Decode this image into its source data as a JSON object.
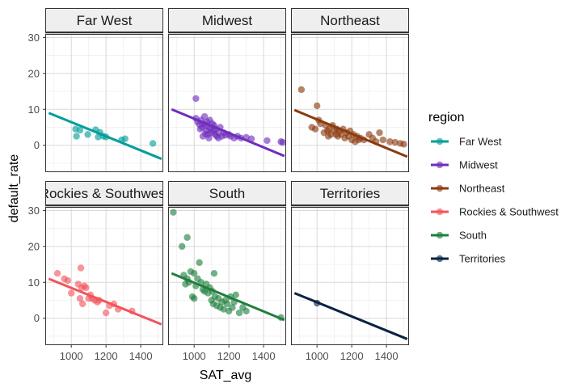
{
  "chart_data": {
    "type": "scatter",
    "facet_by": "region",
    "xlabel": "SAT_avg",
    "ylabel": "default_rate",
    "xlim": [
      850,
      1530
    ],
    "ylim": [
      -7.5,
      31
    ],
    "x_ticks": [
      1000,
      1200,
      1400
    ],
    "x_tick_labels": [
      "1000",
      "1200",
      "1400"
    ],
    "y_ticks": [
      0,
      10,
      20,
      30
    ],
    "y_tick_labels": [
      "0",
      "10",
      "20",
      "30"
    ],
    "grid": true,
    "legend": {
      "title": "region",
      "placement": "right"
    },
    "fit_line": {
      "x_start": 870,
      "x_end": 1520
    },
    "facets": [
      {
        "name": "Far West",
        "color": "#009E9A",
        "fit": {
          "y_start": 9.0,
          "y_end": -3.8
        },
        "points": [
          [
            1025,
            4.5
          ],
          [
            1030,
            2.5
          ],
          [
            1050,
            4.2
          ],
          [
            1095,
            3.0
          ],
          [
            1140,
            4.3
          ],
          [
            1155,
            2.3
          ],
          [
            1165,
            3.6
          ],
          [
            1185,
            2.5
          ],
          [
            1200,
            2.3
          ],
          [
            1290,
            1.5
          ],
          [
            1310,
            1.8
          ],
          [
            1470,
            0.5
          ]
        ]
      },
      {
        "name": "Midwest",
        "color": "#6F2DBD",
        "fit": {
          "y_start": 10.0,
          "y_end": -3.0
        },
        "points": [
          [
            1010,
            13.0
          ],
          [
            1010,
            7.5
          ],
          [
            1020,
            6.5
          ],
          [
            1030,
            5.8
          ],
          [
            1035,
            4.5
          ],
          [
            1040,
            7.0
          ],
          [
            1045,
            5.0
          ],
          [
            1050,
            2.5
          ],
          [
            1055,
            6.0
          ],
          [
            1060,
            8.0
          ],
          [
            1065,
            5.5
          ],
          [
            1070,
            4.0
          ],
          [
            1075,
            6.5
          ],
          [
            1080,
            3.0
          ],
          [
            1085,
            5.0
          ],
          [
            1090,
            7.0
          ],
          [
            1095,
            4.5
          ],
          [
            1100,
            3.5
          ],
          [
            1105,
            6.0
          ],
          [
            1110,
            4.0
          ],
          [
            1115,
            5.5
          ],
          [
            1120,
            3.0
          ],
          [
            1125,
            4.5
          ],
          [
            1130,
            2.5
          ],
          [
            1140,
            3.5
          ],
          [
            1150,
            5.0
          ],
          [
            1160,
            2.5
          ],
          [
            1170,
            3.5
          ],
          [
            1180,
            2.8
          ],
          [
            1200,
            3.0
          ],
          [
            1210,
            2.5
          ],
          [
            1230,
            2.0
          ],
          [
            1250,
            2.5
          ],
          [
            1270,
            2.0
          ],
          [
            1300,
            2.2
          ],
          [
            1330,
            1.8
          ],
          [
            1420,
            1.3
          ],
          [
            1500,
            1.0
          ],
          [
            1510,
            0.8
          ],
          [
            1085,
            2.0
          ],
          [
            1065,
            3.2
          ],
          [
            1140,
            2.0
          ]
        ]
      },
      {
        "name": "Northeast",
        "color": "#8B3A0E",
        "fit": {
          "y_start": 9.8,
          "y_end": -3.2
        },
        "points": [
          [
            910,
            15.5
          ],
          [
            970,
            5.0
          ],
          [
            990,
            4.5
          ],
          [
            1000,
            11.0
          ],
          [
            1010,
            7.0
          ],
          [
            1020,
            6.0
          ],
          [
            1040,
            3.5
          ],
          [
            1050,
            5.5
          ],
          [
            1060,
            4.0
          ],
          [
            1065,
            2.5
          ],
          [
            1070,
            4.5
          ],
          [
            1080,
            3.0
          ],
          [
            1090,
            5.5
          ],
          [
            1100,
            4.0
          ],
          [
            1110,
            3.0
          ],
          [
            1115,
            4.5
          ],
          [
            1120,
            2.5
          ],
          [
            1130,
            4.0
          ],
          [
            1140,
            3.0
          ],
          [
            1150,
            4.5
          ],
          [
            1160,
            2.0
          ],
          [
            1170,
            3.5
          ],
          [
            1180,
            2.5
          ],
          [
            1190,
            4.0
          ],
          [
            1200,
            1.5
          ],
          [
            1210,
            3.0
          ],
          [
            1220,
            1.0
          ],
          [
            1230,
            2.5
          ],
          [
            1240,
            1.5
          ],
          [
            1250,
            2.0
          ],
          [
            1270,
            1.5
          ],
          [
            1300,
            3.0
          ],
          [
            1320,
            2.0
          ],
          [
            1340,
            1.0
          ],
          [
            1360,
            3.5
          ],
          [
            1380,
            1.5
          ],
          [
            1420,
            1.0
          ],
          [
            1450,
            0.8
          ],
          [
            1480,
            0.5
          ],
          [
            1500,
            0.3
          ]
        ]
      },
      {
        "name": "Rockies & Southwest",
        "color": "#F2545B",
        "fit": {
          "y_start": 11.0,
          "y_end": -1.7
        },
        "points": [
          [
            920,
            12.5
          ],
          [
            960,
            11.0
          ],
          [
            980,
            10.5
          ],
          [
            1000,
            7.0
          ],
          [
            1040,
            9.5
          ],
          [
            1050,
            5.5
          ],
          [
            1055,
            14.0
          ],
          [
            1060,
            8.5
          ],
          [
            1065,
            4.0
          ],
          [
            1075,
            9.0
          ],
          [
            1085,
            8.5
          ],
          [
            1100,
            5.5
          ],
          [
            1110,
            6.5
          ],
          [
            1120,
            5.5
          ],
          [
            1135,
            5.0
          ],
          [
            1150,
            4.5
          ],
          [
            1160,
            5.0
          ],
          [
            1200,
            1.5
          ],
          [
            1220,
            3.5
          ],
          [
            1245,
            4.0
          ],
          [
            1270,
            2.5
          ],
          [
            1350,
            2.0
          ]
        ]
      },
      {
        "name": "South",
        "color": "#1E7F3E",
        "fit": {
          "y_start": 12.5,
          "y_end": -0.5
        },
        "points": [
          [
            880,
            29.5
          ],
          [
            930,
            20.0
          ],
          [
            960,
            22.5
          ],
          [
            940,
            12.0
          ],
          [
            950,
            9.5
          ],
          [
            960,
            11.0
          ],
          [
            970,
            10.0
          ],
          [
            980,
            13.0
          ],
          [
            990,
            6.0
          ],
          [
            1000,
            5.5
          ],
          [
            1000,
            12.5
          ],
          [
            1010,
            9.0
          ],
          [
            1020,
            11.0
          ],
          [
            1030,
            15.5
          ],
          [
            1040,
            10.0
          ],
          [
            1050,
            8.0
          ],
          [
            1060,
            7.5
          ],
          [
            1070,
            9.5
          ],
          [
            1080,
            7.0
          ],
          [
            1090,
            8.5
          ],
          [
            1100,
            5.0
          ],
          [
            1105,
            7.5
          ],
          [
            1110,
            4.0
          ],
          [
            1115,
            12.5
          ],
          [
            1120,
            6.0
          ],
          [
            1130,
            3.5
          ],
          [
            1140,
            5.5
          ],
          [
            1150,
            3.0
          ],
          [
            1160,
            4.5
          ],
          [
            1170,
            2.5
          ],
          [
            1180,
            5.0
          ],
          [
            1190,
            4.0
          ],
          [
            1200,
            2.0
          ],
          [
            1210,
            6.0
          ],
          [
            1220,
            3.0
          ],
          [
            1230,
            4.5
          ],
          [
            1240,
            6.5
          ],
          [
            1260,
            1.5
          ],
          [
            1280,
            3.0
          ],
          [
            1300,
            2.0
          ],
          [
            1500,
            0.2
          ]
        ]
      },
      {
        "name": "Territories",
        "color": "#0A2342",
        "fit": {
          "y_start": 7.0,
          "y_end": -5.8
        },
        "points": [
          [
            1000,
            4.2
          ]
        ]
      }
    ]
  }
}
